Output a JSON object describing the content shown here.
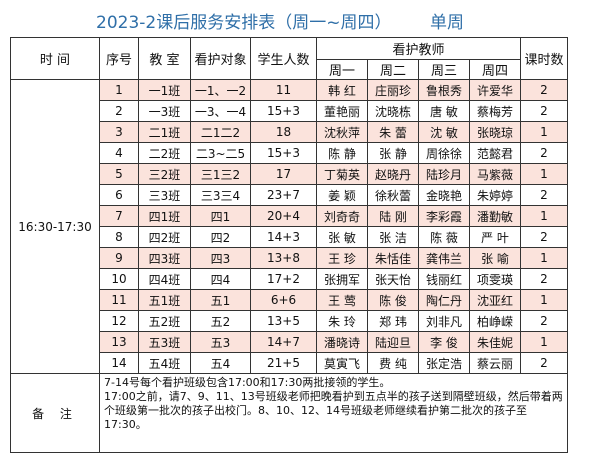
{
  "title": "2023-2课后服务安排表（周一~周四）",
  "week_label": "单周",
  "headers": {
    "time": "时 间",
    "index": "序号",
    "classroom": "教 室",
    "target": "看护对象",
    "count": "学生人数",
    "teachers": "看护教师",
    "hours": "课时数",
    "days": [
      "周一",
      "周二",
      "周三",
      "周四"
    ]
  },
  "time_slot": "16:30-17:30",
  "rows": [
    {
      "no": "1",
      "room": "一1班",
      "target": "一1、一2",
      "count": "11",
      "mon": "韩 红",
      "tue": "庄丽珍",
      "wed": "鲁根秀",
      "thu": "许爱华",
      "hours": "2"
    },
    {
      "no": "2",
      "room": "一3班",
      "target": "一3、一4",
      "count": "15+3",
      "mon": "董艳丽",
      "tue": "沈晓栋",
      "wed": "唐 敏",
      "thu": "蔡梅芳",
      "hours": "2"
    },
    {
      "no": "3",
      "room": "二1班",
      "target": "二1二2",
      "count": "18",
      "mon": "沈秋萍",
      "tue": "朱 蕾",
      "wed": "沈 敏",
      "thu": "张晓琼",
      "hours": "1"
    },
    {
      "no": "4",
      "room": "二2班",
      "target": "二3~二5",
      "count": "15+3",
      "mon": "陈 静",
      "tue": "张 静",
      "wed": "周徐徐",
      "thu": "范懿君",
      "hours": "2"
    },
    {
      "no": "5",
      "room": "三2班",
      "target": "三1三2",
      "count": "17",
      "mon": "丁菊英",
      "tue": "赵晓丹",
      "wed": "陆珍月",
      "thu": "马紫薇",
      "hours": "1"
    },
    {
      "no": "6",
      "room": "三3班",
      "target": "三3三4",
      "count": "23+7",
      "mon": "姜 颖",
      "tue": "徐秋蕾",
      "wed": "金晓艳",
      "thu": "朱婷婷",
      "hours": "2"
    },
    {
      "no": "7",
      "room": "四1班",
      "target": "四1",
      "count": "20+4",
      "mon": "刘奇奇",
      "tue": "陆 刚",
      "wed": "李彩霞",
      "thu": "潘勤敏",
      "hours": "1"
    },
    {
      "no": "8",
      "room": "四2班",
      "target": "四2",
      "count": "14+3",
      "mon": "张 敏",
      "tue": "张 洁",
      "wed": "陈 薇",
      "thu": "严 叶",
      "hours": "2"
    },
    {
      "no": "9",
      "room": "四3班",
      "target": "四3",
      "count": "13+8",
      "mon": "王 珍",
      "tue": "朱恬佳",
      "wed": "龚伟兰",
      "thu": "张 喻",
      "hours": "1"
    },
    {
      "no": "10",
      "room": "四4班",
      "target": "四4",
      "count": "17+2",
      "mon": "张拥军",
      "tue": "张天怡",
      "wed": "钱丽红",
      "thu": "项雯瑛",
      "hours": "2"
    },
    {
      "no": "11",
      "room": "五1班",
      "target": "五1",
      "count": "6+6",
      "mon": "王 莺",
      "tue": "陈 俊",
      "wed": "陶仁丹",
      "thu": "沈亚红",
      "hours": "1"
    },
    {
      "no": "12",
      "room": "五2班",
      "target": "五2",
      "count": "13+5",
      "mon": "朱 玲",
      "tue": "郑 玮",
      "wed": "刘非凡",
      "thu": "柏峥嵘",
      "hours": "2"
    },
    {
      "no": "13",
      "room": "五3班",
      "target": "五3",
      "count": "14+7",
      "mon": "潘晓诗",
      "tue": "陆迎旦",
      "wed": "李 俊",
      "thu": "朱佳妮",
      "hours": "1"
    },
    {
      "no": "14",
      "room": "五4班",
      "target": "五4",
      "count": "21+5",
      "mon": "莫寅飞",
      "tue": "费 纯",
      "wed": "张定浩",
      "thu": "蔡云丽",
      "hours": "2"
    }
  ],
  "remarks_label": "备 注",
  "remarks": [
    "7-14号每个看护班级包含17:00和17:30两批接领的学生。",
    "17:00之前，请7、9、11、13号班级老师把晚看护到五点半的孩子送到隔壁班级，然后带着两个班级第一批次的孩子出校门。8、10、12、14号班级老师继续看护第二批次的孩子至17:30。"
  ]
}
